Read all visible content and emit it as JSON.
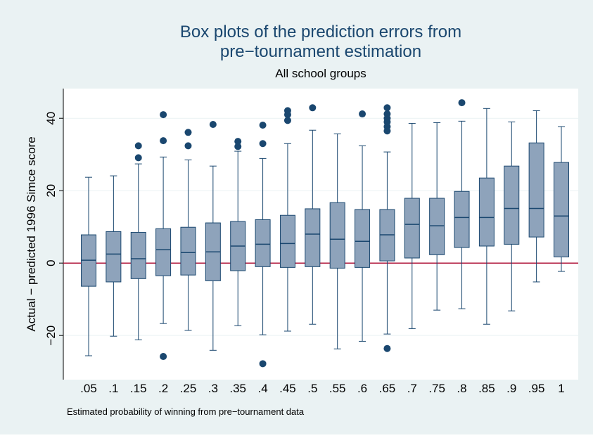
{
  "chart_data": {
    "type": "boxplot",
    "title": "Box plots of the prediction errors from",
    "title_line2": "pre−tournament estimation",
    "subtitle": "All school groups",
    "y_label": "Actual − predicted 1996 Simce score",
    "note": "Estimated probability of winning from pre−tournament data",
    "categories": [
      ".05",
      ".1",
      ".15",
      ".2",
      ".25",
      ".3",
      ".35",
      ".4",
      ".45",
      ".5",
      ".55",
      ".6",
      ".65",
      ".7",
      ".75",
      ".8",
      ".85",
      ".9",
      ".95",
      "1"
    ],
    "boxes": [
      {
        "min": -25.6,
        "q1": -6.4,
        "median": 0.8,
        "q3": 7.8,
        "max": 23.7,
        "outliers": []
      },
      {
        "min": -20.2,
        "q1": -5.2,
        "median": 2.5,
        "q3": 8.7,
        "max": 24.1,
        "outliers": []
      },
      {
        "min": -21.2,
        "q1": -4.3,
        "median": 1.2,
        "q3": 8.5,
        "max": 27.4,
        "outliers": [
          32.4,
          29.1
        ]
      },
      {
        "min": -16.7,
        "q1": -3.5,
        "median": 3.7,
        "q3": 9.5,
        "max": 29.3,
        "outliers": [
          41.0,
          33.8,
          -25.8
        ]
      },
      {
        "min": -18.6,
        "q1": -3.3,
        "median": 2.9,
        "q3": 9.9,
        "max": 28.5,
        "outliers": [
          36.1,
          32.4
        ]
      },
      {
        "min": -24.1,
        "q1": -4.9,
        "median": 3.1,
        "q3": 11.1,
        "max": 26.8,
        "outliers": [
          38.3
        ]
      },
      {
        "min": -17.3,
        "q1": -2.1,
        "median": 4.7,
        "q3": 11.5,
        "max": 30.9,
        "outliers": [
          33.6,
          32.2
        ]
      },
      {
        "min": -19.8,
        "q1": -1.0,
        "median": 5.2,
        "q3": 12.0,
        "max": 28.9,
        "outliers": [
          38.1,
          33.0,
          -27.8
        ]
      },
      {
        "min": -18.8,
        "q1": -1.2,
        "median": 5.4,
        "q3": 13.2,
        "max": 33.0,
        "outliers": [
          42.1,
          41.0,
          39.4
        ]
      },
      {
        "min": -16.9,
        "q1": -1.0,
        "median": 8.0,
        "q3": 15.0,
        "max": 36.7,
        "outliers": [
          42.9
        ]
      },
      {
        "min": -23.7,
        "q1": -1.4,
        "median": 6.6,
        "q3": 16.7,
        "max": 35.7,
        "outliers": []
      },
      {
        "min": -21.6,
        "q1": -1.2,
        "median": 6.0,
        "q3": 14.8,
        "max": 32.4,
        "outliers": [
          41.2
        ]
      },
      {
        "min": -19.6,
        "q1": 0.6,
        "median": 7.8,
        "q3": 14.8,
        "max": 30.7,
        "outliers": [
          42.9,
          41.2,
          40.0,
          39.0,
          37.7,
          36.5,
          -23.6
        ]
      },
      {
        "min": -18.1,
        "q1": 1.4,
        "median": 10.7,
        "q3": 17.9,
        "max": 38.6,
        "outliers": []
      },
      {
        "min": -13.0,
        "q1": 2.3,
        "median": 10.3,
        "q3": 17.9,
        "max": 38.8,
        "outliers": []
      },
      {
        "min": -12.6,
        "q1": 4.3,
        "median": 12.6,
        "q3": 19.8,
        "max": 39.2,
        "outliers": [
          44.3
        ]
      },
      {
        "min": -16.9,
        "q1": 4.7,
        "median": 12.6,
        "q3": 23.5,
        "max": 42.7,
        "outliers": []
      },
      {
        "min": -13.2,
        "q1": 5.2,
        "median": 15.1,
        "q3": 26.8,
        "max": 39.0,
        "outliers": []
      },
      {
        "min": -5.2,
        "q1": 7.2,
        "median": 15.1,
        "q3": 33.2,
        "max": 42.1,
        "outliers": []
      },
      {
        "min": -2.3,
        "q1": 1.7,
        "median": 13.0,
        "q3": 27.8,
        "max": 37.7,
        "outliers": []
      }
    ],
    "box_color": "#8ea3bb",
    "line_color": "#1a476f",
    "refline": 0,
    "refline_color": "#b0163b",
    "ylim": [
      -32.2,
      48.2
    ],
    "yticks": [
      {
        "value": -20,
        "label": "−20"
      },
      0,
      20,
      40
    ],
    "grid": true
  }
}
